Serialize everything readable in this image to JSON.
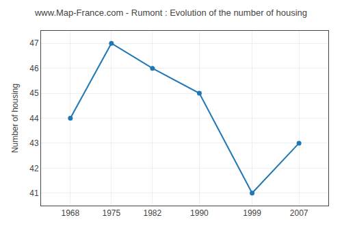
{
  "chart_data": {
    "type": "line",
    "title": "www.Map-France.com - Rumont : Evolution of the number of housing",
    "ylabel": "Number of housing",
    "x": [
      1968,
      1975,
      1982,
      1990,
      1999,
      2007
    ],
    "values": [
      44,
      47,
      46,
      45,
      41,
      43
    ],
    "xlim": [
      1963,
      2012
    ],
    "xticks": [
      1968,
      1975,
      1982,
      1990,
      1999,
      2007
    ],
    "ylim": [
      40.5,
      47.5
    ],
    "yticks": [
      41,
      42,
      43,
      44,
      45,
      46,
      47
    ],
    "grid": true,
    "marker": "circle"
  }
}
